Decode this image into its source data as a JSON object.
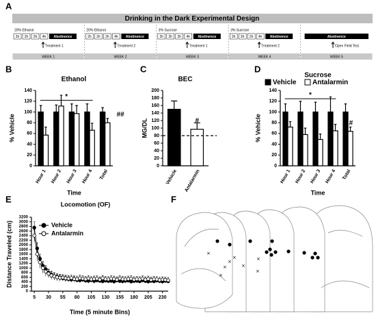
{
  "panel_labels": [
    "A",
    "B",
    "C",
    "D",
    "E",
    "F"
  ],
  "design": {
    "title": "Drinking in the Dark Experimental Design",
    "weeks": [
      {
        "label": "WEEK 1",
        "solution": "20% Ethanol",
        "sessions": [
          "2h",
          "2h",
          "2h",
          "4h"
        ],
        "abstinence": "Abstinence",
        "treatment": "Treatment 1"
      },
      {
        "label": "WEEK 2",
        "solution": "20% Ethanol",
        "sessions": [
          "2h",
          "2h",
          "2h",
          "4h"
        ],
        "abstinence": "Abstinence",
        "treatment": "Treatment 2"
      },
      {
        "label": "WEEK 3",
        "solution": "3% Sucrose",
        "sessions": [
          "2h",
          "2h",
          "2h",
          "4h"
        ],
        "abstinence": "Abstinence",
        "treatment": "Treatment 1"
      },
      {
        "label": "WEEK 4",
        "solution": "3% Sucrose",
        "sessions": [
          "2h",
          "2h",
          "2h",
          "4h"
        ],
        "abstinence": "Abstinence",
        "treatment": "Treatment 2"
      },
      {
        "label": "WEEK 5",
        "abstinence": "Abstinence",
        "treatment": "Open Field Test"
      }
    ]
  },
  "chart_data": [
    {
      "type": "bar",
      "title": "Ethanol",
      "categories": [
        "Hour 1",
        "Hour 2",
        "Hour 3",
        "Hour 4",
        "Total"
      ],
      "series": [
        {
          "color": "#000000",
          "values": [
            100,
            100,
            100,
            100,
            100
          ],
          "errors": [
            12,
            13,
            15,
            15,
            8
          ]
        },
        {
          "color": "#ffffff",
          "values": [
            57,
            111,
            97,
            66,
            80
          ],
          "errors": [
            15,
            20,
            15,
            13,
            8
          ]
        }
      ],
      "xlabel": "Time",
      "ylabel": "% Vehicle",
      "ylim": [
        0,
        140
      ],
      "yticks": [
        0,
        20,
        40,
        60,
        80,
        100,
        120,
        140
      ],
      "annotations": [
        "*",
        "##"
      ],
      "legend": false
    },
    {
      "type": "bar",
      "title": "BEC",
      "categories": [
        "Vehicle",
        "Antalarmin"
      ],
      "values": [
        150,
        97
      ],
      "errors": [
        22,
        17
      ],
      "colors": [
        "#000000",
        "#ffffff"
      ],
      "ylabel": "MG/DL",
      "ylim": [
        0,
        200
      ],
      "yticks": [
        0,
        20,
        40,
        60,
        80,
        100,
        120,
        140,
        160,
        180,
        200
      ],
      "reference_line": 80,
      "annotations": [
        "#"
      ],
      "legend": false
    },
    {
      "type": "bar",
      "title": "Sucrose",
      "categories": [
        "Hour 1",
        "Hour 2",
        "Hour 3",
        "Hour 4",
        "Total"
      ],
      "series": [
        {
          "name": "Vehicle",
          "color": "#000000",
          "values": [
            100,
            100,
            100,
            100,
            100
          ],
          "errors": [
            15,
            20,
            18,
            28,
            15
          ]
        },
        {
          "name": "Antalarmin",
          "color": "#ffffff",
          "values": [
            72,
            58,
            49,
            65,
            64
          ],
          "errors": [
            10,
            12,
            10,
            12,
            8
          ]
        }
      ],
      "xlabel": "Time",
      "ylabel": "% Vehicle",
      "ylim": [
        0,
        140
      ],
      "yticks": [
        0,
        20,
        40,
        60,
        80,
        100,
        120,
        140
      ],
      "annotations": [
        "*",
        "#"
      ],
      "legend": true
    },
    {
      "type": "line",
      "title": "Locomotion (OF)",
      "x": [
        5,
        10,
        15,
        20,
        25,
        30,
        35,
        40,
        45,
        50,
        55,
        60,
        65,
        70,
        75,
        80,
        85,
        90,
        95,
        100,
        105,
        110,
        115,
        120,
        125,
        130,
        135,
        140,
        145,
        150,
        155,
        160,
        165,
        170,
        175,
        180,
        185,
        190,
        195,
        200,
        205,
        210,
        215,
        220,
        225,
        230,
        235,
        240
      ],
      "series": [
        {
          "name": "Vehicle",
          "color": "#000000",
          "marker_fill": "#000000",
          "values": [
            2750,
            1850,
            1400,
            1100,
            950,
            800,
            720,
            650,
            620,
            600,
            560,
            540,
            520,
            500,
            520,
            480,
            470,
            500,
            460,
            450,
            480,
            440,
            470,
            450,
            430,
            460,
            440,
            450,
            420,
            470,
            440,
            430,
            450,
            460,
            420,
            440,
            450,
            430,
            470,
            440,
            420,
            450,
            430,
            460,
            440,
            420,
            450,
            430
          ],
          "errors": [
            250,
            250,
            200,
            180,
            160,
            150,
            140,
            130,
            120,
            120,
            110,
            110,
            100,
            100,
            100,
            100,
            100,
            100,
            100,
            100,
            90,
            90,
            90,
            90,
            90,
            90,
            90,
            90,
            90,
            90,
            90,
            90,
            90,
            90,
            90,
            90,
            90,
            90,
            90,
            90,
            90,
            90,
            90,
            90,
            90,
            90,
            90,
            90
          ]
        },
        {
          "name": "Antalarmin",
          "color": "#000000",
          "marker_fill": "#ffffff",
          "values": [
            2400,
            1600,
            1250,
            1000,
            850,
            760,
            680,
            640,
            600,
            580,
            590,
            560,
            540,
            570,
            530,
            520,
            560,
            540,
            520,
            550,
            510,
            530,
            540,
            500,
            560,
            520,
            510,
            540,
            530,
            500,
            550,
            520,
            510,
            530,
            540,
            500,
            520,
            510,
            540,
            500,
            530,
            490,
            520,
            510,
            480,
            500,
            490,
            470
          ],
          "errors": [
            250,
            300,
            250,
            220,
            200,
            180,
            170,
            160,
            150,
            150,
            140,
            140,
            140,
            130,
            130,
            130,
            130,
            130,
            120,
            120,
            120,
            120,
            120,
            120,
            120,
            120,
            120,
            120,
            120,
            120,
            120,
            120,
            120,
            120,
            120,
            120,
            120,
            120,
            120,
            120,
            120,
            120,
            120,
            120,
            120,
            120,
            120,
            120
          ]
        }
      ],
      "xlabel": "Time (5 minute Bins)",
      "ylabel": "Distance Traveled (cm)",
      "xlim": [
        0,
        240
      ],
      "xticks": [
        5,
        30,
        55,
        80,
        105,
        130,
        155,
        180,
        205,
        230
      ],
      "ylim": [
        0,
        3200
      ],
      "yticks": [
        0,
        200,
        400,
        600,
        800,
        1000,
        1200,
        1400,
        1600,
        1800,
        2000,
        2200,
        2400,
        2600,
        2800,
        3000,
        3200
      ],
      "legend": true
    }
  ]
}
